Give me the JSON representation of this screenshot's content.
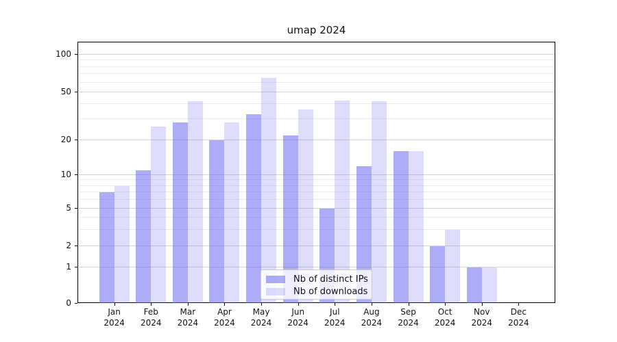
{
  "figure": {
    "background": "#ffffff"
  },
  "chart_data": {
    "type": "bar",
    "title": "umap 2024",
    "categories": [
      "Jan 2024",
      "Feb 2024",
      "Mar 2024",
      "Apr 2024",
      "May 2024",
      "Jun 2024",
      "Jul 2024",
      "Aug 2024",
      "Sep 2024",
      "Oct 2024",
      "Nov 2024",
      "Dec 2024"
    ],
    "series": [
      {
        "name": "Nb of distinct IPs",
        "values": [
          7,
          11,
          28,
          20,
          33,
          22,
          5,
          12,
          16,
          2,
          1,
          0
        ],
        "color": "#6767f2",
        "alpha": 0.55
      },
      {
        "name": "Nb of downloads",
        "values": [
          8,
          26,
          42,
          28,
          65,
          36,
          43,
          42,
          16,
          3,
          1,
          0
        ],
        "color": "#6767f2",
        "alpha": 0.22
      }
    ],
    "yscale": "symlog (linear 0-1, log above 1)",
    "yticks": [
      0,
      1,
      2,
      5,
      10,
      20,
      50,
      100
    ],
    "minor_gridlines": [
      3,
      4,
      6,
      7,
      8,
      9,
      30,
      40,
      60,
      70,
      80,
      90
    ],
    "ylim": [
      0,
      130
    ],
    "xlabel": "",
    "ylabel": "",
    "grid": true,
    "legend_position": "inside lower center"
  },
  "colors": {
    "bar_base": "#6767f2",
    "bar_dark_on_white": "#abaaf8",
    "bar_light_on_white": "#dedefc",
    "grid_major": "#d3d3d3",
    "grid_minor": "#ececec",
    "axis": "#000000",
    "text": "#111111",
    "legend_border": "#cccccc"
  }
}
